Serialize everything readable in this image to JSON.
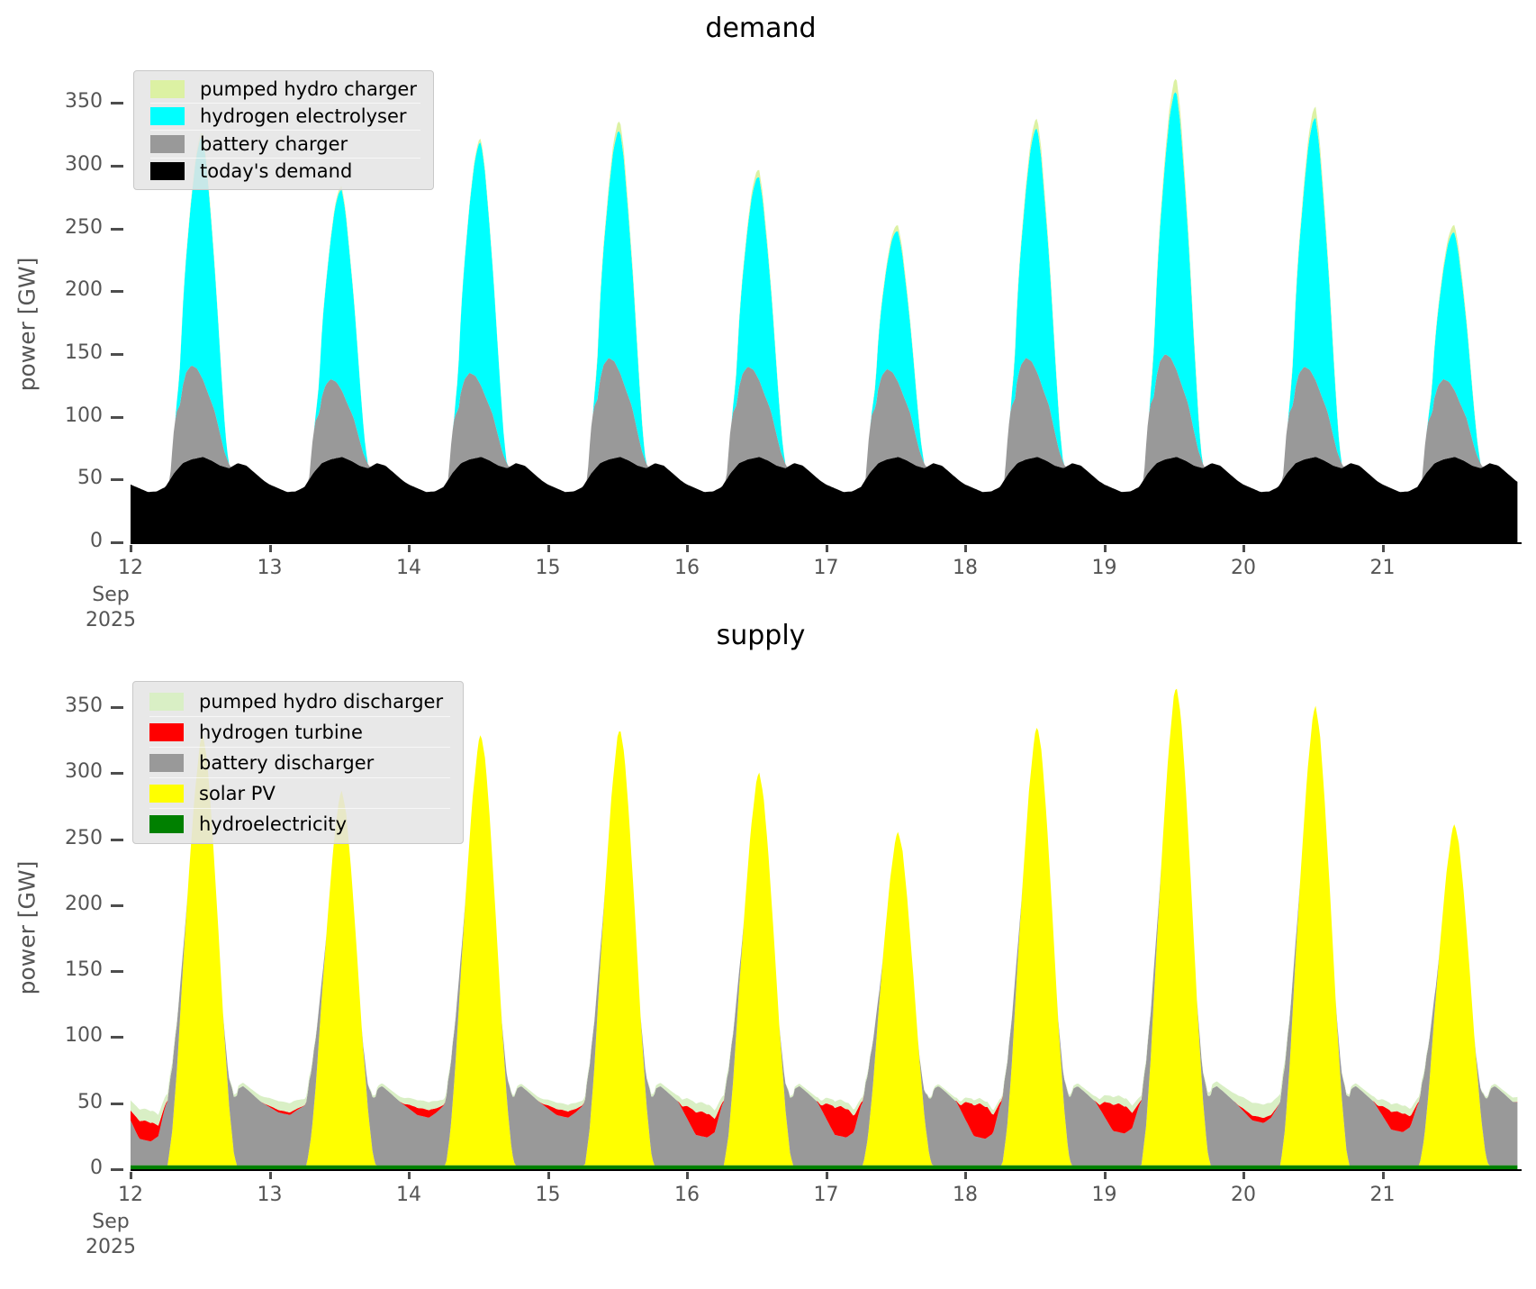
{
  "figure": {
    "background": "#ffffff",
    "tick_label_color": "#555555",
    "tick_mark_color": "#4d4d4d",
    "axis_line_color": "#000000",
    "legend_bg": "#e5e5e5",
    "legend_border": "#c8c8c8"
  },
  "chart_data": [
    {
      "type": "area",
      "stacked": true,
      "title": "demand",
      "ylabel": "power [GW]",
      "x_tick_labels": [
        "12",
        "13",
        "14",
        "15",
        "16",
        "17",
        "18",
        "19",
        "20",
        "21"
      ],
      "x_offset_label": [
        "Sep",
        "2025"
      ],
      "y_tick_labels": [
        "0",
        "50",
        "100",
        "150",
        "200",
        "250",
        "300",
        "350"
      ],
      "y_tick_values": [
        0,
        50,
        100,
        150,
        200,
        250,
        300,
        350
      ],
      "x_range_days": [
        12,
        21.97
      ],
      "day_peak_total_gw": [
        330,
        287,
        330,
        334,
        301,
        256,
        336,
        366,
        351,
        262
      ],
      "legend_order": [
        "pumped-hydro-charger",
        "hydrogen-electrolyser",
        "battery-charger",
        "todays-demand"
      ],
      "series": [
        {
          "name": "todays-demand",
          "label": "today's demand",
          "color": "#000000",
          "kind": "daily",
          "template": [
            [
              0,
              46
            ],
            [
              1.5,
              43
            ],
            [
              3,
              40
            ],
            [
              4.5,
              40.5
            ],
            [
              6,
              44
            ],
            [
              7.5,
              55
            ],
            [
              9,
              63
            ],
            [
              10.5,
              66
            ],
            [
              12.5,
              68
            ],
            [
              14,
              65
            ],
            [
              15.5,
              61
            ],
            [
              17,
              59
            ],
            [
              18.5,
              63
            ],
            [
              20,
              61
            ],
            [
              21.5,
              55
            ],
            [
              23,
              49
            ],
            [
              24,
              46
            ]
          ],
          "day_scale": [
            1,
            1,
            1,
            1,
            1,
            1,
            1,
            1,
            1,
            1
          ]
        },
        {
          "name": "battery-charger",
          "label": "battery charger",
          "color": "#999999",
          "kind": "daily",
          "template": [
            [
              6.8,
              0
            ],
            [
              7.4,
              0.42
            ],
            [
              7.9,
              0.62
            ],
            [
              8.6,
              0.66
            ],
            [
              8.9,
              0.8
            ],
            [
              9.6,
              0.95
            ],
            [
              10.5,
              1
            ],
            [
              11.5,
              0.95
            ],
            [
              12.5,
              0.82
            ],
            [
              13.5,
              0.68
            ],
            [
              14.5,
              0.55
            ],
            [
              15.3,
              0.37
            ],
            [
              16.2,
              0.16
            ],
            [
              17.3,
              0
            ]
          ],
          "day_scale": [
            75,
            64,
            69,
            81,
            74,
            72,
            81,
            84,
            74,
            64
          ]
        },
        {
          "name": "hydrogen-electrolyser",
          "label": "hydrogen electrolyser",
          "color": "#00ffff",
          "kind": "daily",
          "template": [
            [
              7.8,
              0
            ],
            [
              8.4,
              0.12
            ],
            [
              9.2,
              0.38
            ],
            [
              10.2,
              0.62
            ],
            [
              11.2,
              0.85
            ],
            [
              12,
              0.97
            ],
            [
              12.45,
              1
            ],
            [
              13.1,
              0.93
            ],
            [
              13.9,
              0.75
            ],
            [
              14.8,
              0.52
            ],
            [
              15.7,
              0.26
            ],
            [
              16.4,
              0.08
            ],
            [
              16.9,
              0
            ]
          ],
          "day_scale": [
            193,
            160,
            194,
            193,
            162,
            120,
            195,
            222,
            209,
            126
          ]
        },
        {
          "name": "pumped-hydro-charger",
          "label": "pumped hydro charger",
          "color": "#dcf1a3",
          "kind": "daily",
          "template": [
            [
              7.9,
              0
            ],
            [
              8.3,
              0.35
            ],
            [
              9.5,
              0.45
            ],
            [
              10.5,
              0.55
            ],
            [
              11.5,
              0.75
            ],
            [
              12.4,
              1
            ],
            [
              13.3,
              0.9
            ],
            [
              14.2,
              0.65
            ],
            [
              15.2,
              0.45
            ],
            [
              16.2,
              0.3
            ],
            [
              16.9,
              0
            ]
          ],
          "day_scale": [
            4,
            3,
            3,
            8,
            6,
            5,
            8,
            11,
            9,
            6
          ]
        }
      ]
    },
    {
      "type": "area",
      "stacked": true,
      "title": "supply",
      "ylabel": "power [GW]",
      "x_tick_labels": [
        "12",
        "13",
        "14",
        "15",
        "16",
        "17",
        "18",
        "19",
        "20",
        "21"
      ],
      "x_offset_label": [
        "Sep",
        "2025"
      ],
      "y_tick_labels": [
        "0",
        "50",
        "100",
        "150",
        "200",
        "250",
        "300",
        "350"
      ],
      "y_tick_values": [
        0,
        50,
        100,
        150,
        200,
        250,
        300,
        350
      ],
      "x_range_days": [
        12,
        21.97
      ],
      "solar_day_peak_gw": [
        327,
        284,
        327,
        331,
        298,
        253,
        333,
        363,
        348,
        259
      ],
      "night_params": {
        "battery_trough_gw": [
          18,
          38,
          36,
          36,
          21,
          21,
          20,
          24,
          32,
          25,
          45
        ],
        "turbine_peak_gw": [
          15,
          2,
          6,
          5,
          19,
          23,
          26,
          22,
          4,
          15,
          2
        ],
        "pumped_peak_gw": [
          9,
          7,
          6,
          5,
          7,
          5,
          4,
          6,
          10,
          6,
          5
        ]
      },
      "legend_order": [
        "pumped-hydro-discharger",
        "hydrogen-turbine",
        "battery-discharger",
        "solar-pv",
        "hydroelectricity"
      ],
      "series": [
        {
          "name": "hydroelectricity",
          "label": "hydroelectricity",
          "color": "#008000",
          "kind": "const",
          "value": 3
        },
        {
          "name": "solar-pv",
          "label": "solar PV",
          "color": "#ffff00",
          "kind": "daily",
          "template": [
            [
              6.4,
              0
            ],
            [
              7.2,
              0.08
            ],
            [
              8,
              0.22
            ],
            [
              9,
              0.45
            ],
            [
              10,
              0.66
            ],
            [
              11,
              0.85
            ],
            [
              12,
              0.98
            ],
            [
              12.45,
              1
            ],
            [
              13.2,
              0.94
            ],
            [
              14,
              0.8
            ],
            [
              15,
              0.58
            ],
            [
              16,
              0.34
            ],
            [
              17,
              0.14
            ],
            [
              17.8,
              0.03
            ],
            [
              18.3,
              0
            ]
          ],
          "day_scale": [
            327,
            284,
            327,
            331,
            298,
            253,
            333,
            363,
            348,
            259
          ]
        },
        {
          "name": "battery-discharger",
          "label": "battery discharger",
          "color": "#999999",
          "kind": "night",
          "param": "battery_trough_gw"
        },
        {
          "name": "hydrogen-turbine",
          "label": "hydrogen turbine",
          "color": "#ff0000",
          "kind": "night",
          "param": "turbine_peak_gw"
        },
        {
          "name": "pumped-hydro-discharger",
          "label": "pumped hydro discharger",
          "color": "#d9efc5",
          "kind": "night",
          "param": "pumped_peak_gw"
        }
      ]
    }
  ]
}
